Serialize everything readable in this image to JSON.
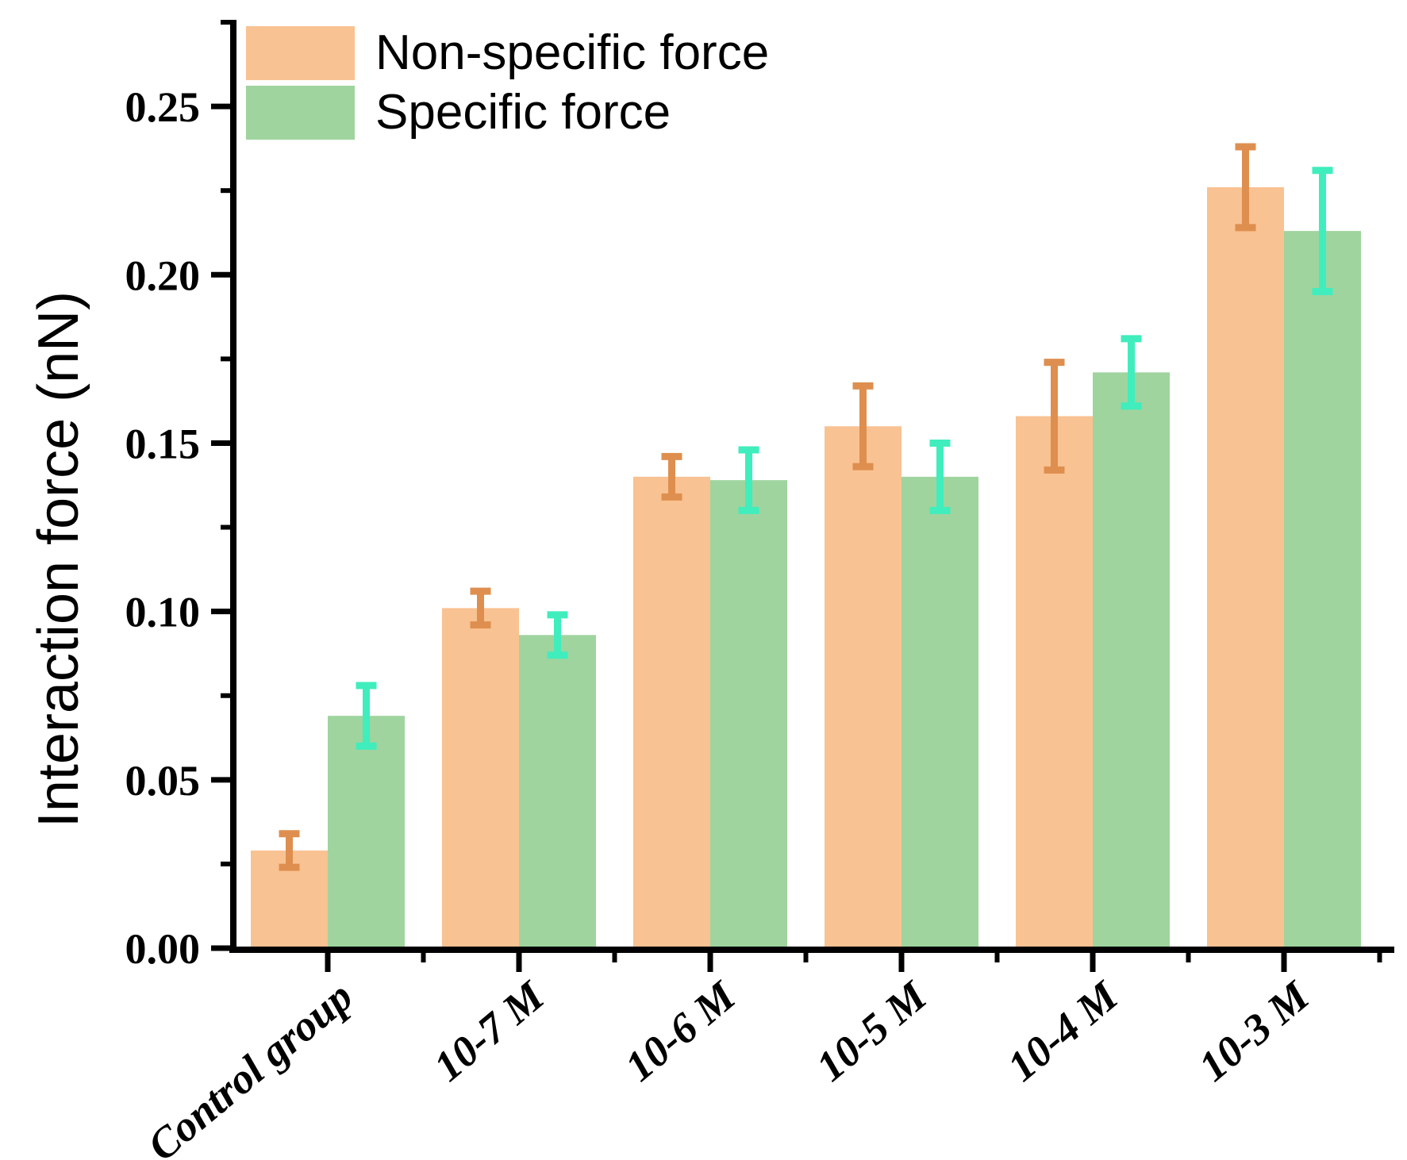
{
  "chart_data": {
    "type": "bar",
    "title": "",
    "xlabel": "",
    "ylabel": "Interaction force (nN)",
    "ylim": [
      0,
      0.275
    ],
    "y_major_ticks": [
      0,
      0.05,
      0.1,
      0.15,
      0.2,
      0.25
    ],
    "y_tick_labels": [
      "0.00",
      "0.05",
      "0.10",
      "0.15",
      "0.20",
      "0.25"
    ],
    "y_minor_tick_step": 0.025,
    "grid": false,
    "legend_position": "top-left-inside",
    "categories": [
      "Control group",
      "10-7 M",
      "10-6 M",
      "10-5 M",
      "10-4 M",
      "10-3 M"
    ],
    "series": [
      {
        "name": "Non-specific force",
        "color": "#F9C292",
        "error_color": "#DE8F4F",
        "values": [
          0.029,
          0.101,
          0.14,
          0.155,
          0.158,
          0.226
        ],
        "errors": [
          0.005,
          0.005,
          0.006,
          0.012,
          0.016,
          0.012
        ]
      },
      {
        "name": "Specific force",
        "color": "#9FD49E",
        "error_color": "#40EDBD",
        "values": [
          0.069,
          0.093,
          0.139,
          0.14,
          0.171,
          0.213
        ],
        "errors": [
          0.009,
          0.006,
          0.009,
          0.01,
          0.01,
          0.018
        ]
      }
    ],
    "axis_color": "#000000",
    "background": "#FFFFFF"
  }
}
